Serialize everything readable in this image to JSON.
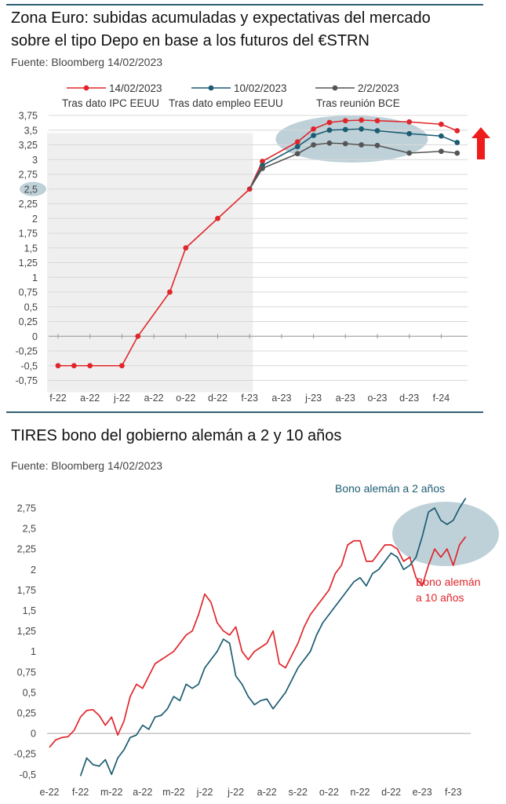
{
  "chart1": {
    "title_line1": "Zona Euro: subidas acumuladas y expectativas del mercado",
    "title_line2": "sobre el tipo Depo en base a los futuros del €STRN",
    "source": "Fuente: Bloomberg 14/02/2023",
    "arrow_icon": "arrow-up-icon",
    "colors": {
      "red": "#e0262b",
      "teal": "#1c5c72",
      "gray": "#555555",
      "shade": "#efefef",
      "ellipse": "#b3c9d2"
    },
    "chart_data": {
      "type": "line",
      "x_labels": [
        "f-22",
        "a-22",
        "j-22",
        "a-22",
        "o-22",
        "d-22",
        "f-23",
        "a-23",
        "j-23",
        "a-23",
        "o-23",
        "d-23",
        "f-24"
      ],
      "y_ticks": [
        "3,75",
        "3,5",
        "3,25",
        "3",
        "2,75",
        "2,5",
        "2,25",
        "2",
        "1,75",
        "1,5",
        "1,25",
        "1",
        "0,75",
        "0,5",
        "0,25",
        "0",
        "-0,25",
        "-0,5",
        "-0,75"
      ],
      "ylim": [
        -0.75,
        3.75
      ],
      "historical": {
        "x": [
          0,
          0.5,
          1,
          2,
          2.5,
          3.5,
          4,
          5,
          6
        ],
        "y": [
          -0.5,
          -0.5,
          -0.5,
          -0.5,
          0,
          0.75,
          1.5,
          2,
          2.5
        ]
      },
      "series": [
        {
          "name": "14/02/2023",
          "sublabel": "Tras dato IPC EEUU",
          "x": [
            6.4,
            7.5,
            8,
            8.5,
            9,
            9.5,
            10,
            11,
            12,
            12.5
          ],
          "y": [
            2.97,
            3.3,
            3.52,
            3.63,
            3.66,
            3.67,
            3.66,
            3.64,
            3.6,
            3.49
          ]
        },
        {
          "name": "10/02/2023",
          "sublabel": "Tras dato empleo EEUU",
          "x": [
            6.4,
            7.5,
            8,
            8.5,
            9,
            9.5,
            10,
            11,
            12,
            12.5
          ],
          "y": [
            2.9,
            3.22,
            3.41,
            3.5,
            3.51,
            3.52,
            3.49,
            3.44,
            3.4,
            3.29
          ]
        },
        {
          "name": "2/2/2023",
          "sublabel": "Tras reunión BCE",
          "x": [
            6.4,
            7.5,
            8,
            8.5,
            9,
            9.5,
            10,
            11,
            12,
            12.5
          ],
          "y": [
            2.85,
            3.1,
            3.25,
            3.28,
            3.27,
            3.25,
            3.24,
            3.11,
            3.14,
            3.11
          ]
        }
      ]
    }
  },
  "chart2": {
    "title": "TIRES bono del gobierno alemán a 2 y 10 años",
    "source": "Fuente: Bloomberg 14/02/2023",
    "label_2y": "Bono alemán a 2 años",
    "label_10y_line1": "Bono alemán",
    "label_10y_line2": "a 10 años",
    "chart_data": {
      "type": "line",
      "x_labels": [
        "e-22",
        "f-22",
        "m-22",
        "a-22",
        "m-22",
        "j-22",
        "j-22",
        "a-22",
        "s-22",
        "o-22",
        "n-22",
        "d-22",
        "e-23",
        "f-23"
      ],
      "y_ticks": [
        "2,75",
        "2,5",
        "2,25",
        "2",
        "1,75",
        "1,5",
        "1,25",
        "1",
        "0,75",
        "0,5",
        "0,25",
        "0",
        "-0,25",
        "-0,5"
      ],
      "ylim": [
        -0.5,
        2.75
      ],
      "series": [
        {
          "name": "Bono alemán a 10 años",
          "x": [
            0,
            0.2,
            0.4,
            0.6,
            0.8,
            1,
            1.2,
            1.4,
            1.6,
            1.8,
            2,
            2.2,
            2.4,
            2.6,
            2.8,
            3,
            3.2,
            3.4,
            3.6,
            3.8,
            4,
            4.2,
            4.4,
            4.6,
            4.8,
            5,
            5.2,
            5.4,
            5.6,
            5.8,
            6,
            6.2,
            6.4,
            6.6,
            6.8,
            7,
            7.2,
            7.4,
            7.6,
            7.8,
            8,
            8.2,
            8.4,
            8.6,
            8.8,
            9,
            9.2,
            9.4,
            9.6,
            9.8,
            10,
            10.2,
            10.4,
            10.6,
            10.8,
            11,
            11.2,
            11.4,
            11.6,
            11.8,
            12,
            12.2,
            12.4,
            12.6,
            12.8,
            13,
            13.2,
            13.4
          ],
          "y": [
            -0.17,
            -0.08,
            -0.05,
            -0.04,
            0.04,
            0.2,
            0.28,
            0.29,
            0.22,
            0.1,
            0.2,
            -0.02,
            0.15,
            0.45,
            0.6,
            0.55,
            0.7,
            0.85,
            0.9,
            0.95,
            1.0,
            1.1,
            1.2,
            1.25,
            1.45,
            1.7,
            1.6,
            1.35,
            1.25,
            1.2,
            1.3,
            1.0,
            0.9,
            1.0,
            1.05,
            1.1,
            1.25,
            0.85,
            0.8,
            0.95,
            1.1,
            1.3,
            1.45,
            1.55,
            1.65,
            1.75,
            1.95,
            2.05,
            2.3,
            2.35,
            2.35,
            2.1,
            2.1,
            2.2,
            2.3,
            2.3,
            2.25,
            2.1,
            2.15,
            1.9,
            1.8,
            2.05,
            2.25,
            2.15,
            2.25,
            2.05,
            2.3,
            2.4
          ]
        },
        {
          "name": "Bono alemán a 2 años",
          "x": [
            1,
            1.2,
            1.4,
            1.6,
            1.8,
            2,
            2.2,
            2.4,
            2.6,
            2.8,
            3,
            3.2,
            3.4,
            3.6,
            3.8,
            4,
            4.2,
            4.4,
            4.6,
            4.8,
            5,
            5.2,
            5.4,
            5.6,
            5.8,
            6,
            6.2,
            6.4,
            6.6,
            6.8,
            7,
            7.2,
            7.4,
            7.6,
            7.8,
            8,
            8.2,
            8.4,
            8.6,
            8.8,
            9,
            9.2,
            9.4,
            9.6,
            9.8,
            10,
            10.2,
            10.4,
            10.6,
            10.8,
            11,
            11.2,
            11.4,
            11.6,
            11.8,
            12,
            12.2,
            12.4,
            12.6,
            12.8,
            13,
            13.2,
            13.4
          ],
          "y": [
            -0.52,
            -0.3,
            -0.38,
            -0.4,
            -0.32,
            -0.5,
            -0.3,
            -0.2,
            -0.05,
            -0.02,
            0.1,
            0.05,
            0.2,
            0.22,
            0.3,
            0.45,
            0.4,
            0.6,
            0.55,
            0.6,
            0.8,
            0.9,
            1.0,
            1.15,
            1.1,
            0.7,
            0.6,
            0.45,
            0.35,
            0.4,
            0.42,
            0.3,
            0.4,
            0.5,
            0.65,
            0.8,
            0.9,
            1.0,
            1.2,
            1.35,
            1.45,
            1.55,
            1.65,
            1.75,
            1.85,
            1.9,
            1.8,
            1.95,
            2.0,
            2.1,
            2.2,
            2.15,
            2.0,
            2.05,
            2.15,
            2.4,
            2.7,
            2.75,
            2.6,
            2.55,
            2.6,
            2.75,
            2.87
          ]
        }
      ]
    }
  }
}
